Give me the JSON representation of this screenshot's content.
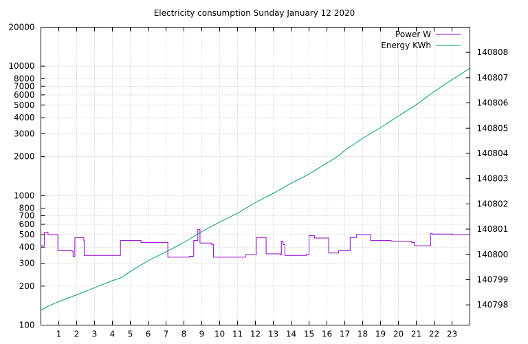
{
  "chart_data": {
    "type": "line",
    "title": "Electricity consumption Sunday January 12 2020",
    "xlabel": "",
    "ylabel": "",
    "y2label": "",
    "xlim": [
      0,
      24
    ],
    "x_ticks": [
      1,
      2,
      3,
      4,
      5,
      6,
      7,
      8,
      9,
      10,
      11,
      12,
      13,
      14,
      15,
      16,
      17,
      18,
      19,
      20,
      21,
      22,
      23
    ],
    "ylim": [
      100,
      20000
    ],
    "y_scale": "log",
    "y_ticks": [
      100,
      200,
      300,
      400,
      500,
      600,
      700,
      800,
      1000,
      2000,
      3000,
      4000,
      5000,
      6000,
      7000,
      8000,
      10000,
      20000
    ],
    "y2lim": [
      140797.2,
      140809.0
    ],
    "y2_ticks": [
      140798,
      140799,
      140800,
      140801,
      140802,
      140803,
      140804,
      140805,
      140806,
      140807,
      140808
    ],
    "grid": true,
    "legend_position": "top-right",
    "series": [
      {
        "name": "Power W",
        "axis": "y",
        "color": "#9400d3",
        "step": true,
        "x": [
          0,
          0.2,
          0.4,
          0.95,
          1.75,
          1.8,
          1.9,
          2.4,
          2.42,
          4.35,
          4.45,
          5.6,
          7.1,
          8.3,
          8.55,
          8.78,
          8.9,
          9.55,
          9.65,
          11.05,
          11.45,
          12.05,
          12.6,
          13.4,
          13.45,
          13.5,
          13.55,
          13.65,
          14.85,
          15.0,
          15.3,
          16.1,
          16.6,
          16.65,
          17.3,
          17.65,
          18.45,
          19.6,
          20.75,
          20.9,
          21.8,
          21.88,
          23.05,
          24
        ],
        "y": [
          410,
          520,
          500,
          375,
          370,
          340,
          475,
          450,
          345,
          345,
          450,
          435,
          335,
          340,
          450,
          550,
          430,
          420,
          335,
          335,
          350,
          475,
          355,
          350,
          445,
          440,
          420,
          345,
          350,
          490,
          470,
          360,
          360,
          375,
          475,
          500,
          450,
          445,
          435,
          410,
          510,
          505,
          500,
          435
        ]
      },
      {
        "name": "Energy KWh",
        "axis": "y2",
        "color": "#009e73",
        "step": false,
        "x": [
          0,
          0.5,
          1,
          2,
          3,
          4,
          4.5,
          5,
          6,
          7,
          8,
          9,
          10,
          11,
          12,
          13,
          14,
          15,
          16,
          16.5,
          17,
          18,
          19,
          20,
          21,
          22,
          23,
          24
        ],
        "y": [
          140797.8,
          140797.98,
          140798.13,
          140798.4,
          140798.68,
          140798.96,
          140799.08,
          140799.32,
          140799.75,
          140800.1,
          140800.47,
          140800.9,
          140801.28,
          140801.63,
          140802.05,
          140802.42,
          140802.82,
          140803.18,
          140803.62,
          140803.83,
          140804.12,
          140804.6,
          140805.02,
          140805.48,
          140805.93,
          140806.45,
          140806.92,
          140807.37
        ]
      }
    ]
  }
}
